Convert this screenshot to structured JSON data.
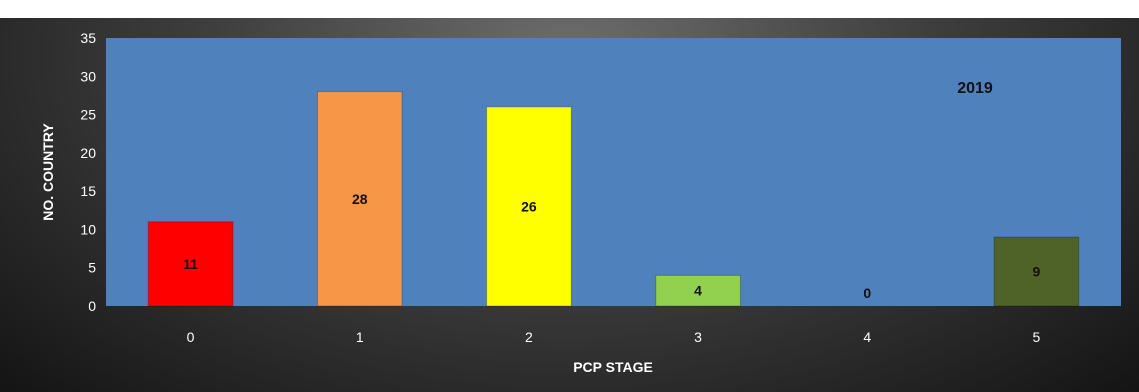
{
  "chart_data": {
    "type": "bar",
    "categories": [
      "0",
      "1",
      "2",
      "3",
      "4",
      "5"
    ],
    "values": [
      11,
      28,
      26,
      4,
      0,
      9
    ],
    "data_labels": [
      "11",
      "28",
      "26",
      "4",
      "0",
      "9"
    ],
    "bar_colors": [
      "#ff0000",
      "#f79646",
      "#ffff00",
      "#92d050",
      "#92d050",
      "#4f6228"
    ],
    "plot_background": "#4f81bd",
    "frame_background": "#262626",
    "annotation": "2019",
    "xlabel": "PCP STAGE",
    "ylabel": "NO. COUNTRY",
    "yticks": [
      "0",
      "5",
      "10",
      "15",
      "20",
      "25",
      "30",
      "35"
    ],
    "ylim": [
      0,
      35
    ],
    "grid": false,
    "legend": "none"
  }
}
